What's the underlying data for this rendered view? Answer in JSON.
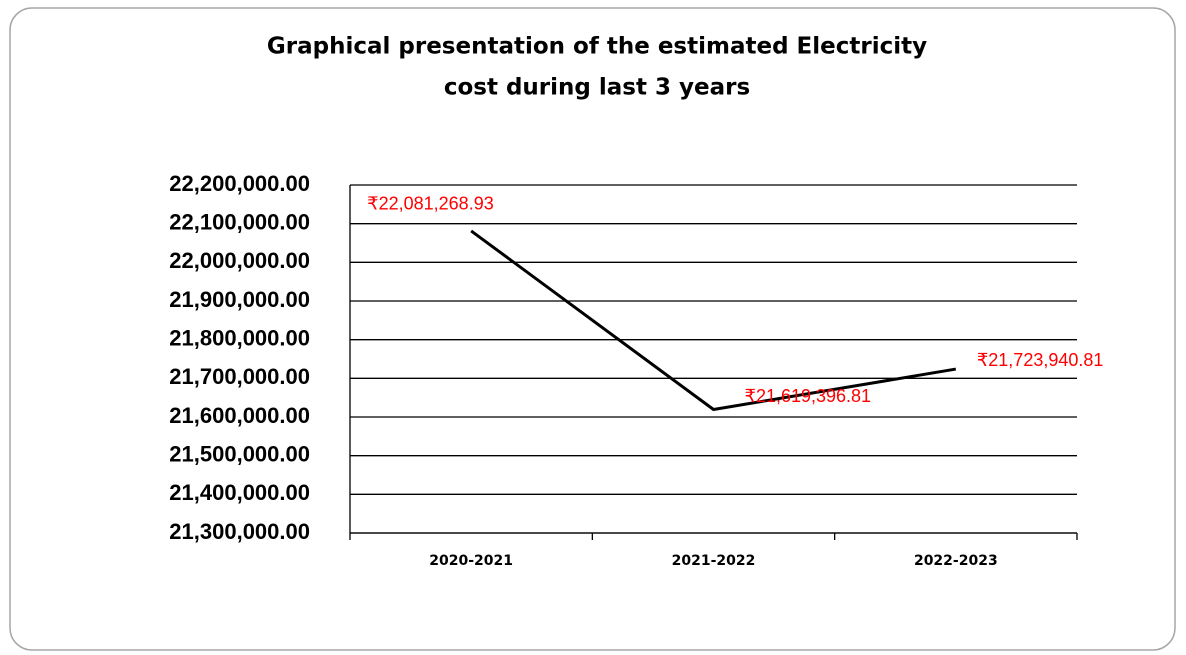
{
  "chart_data": {
    "type": "line",
    "title": "Graphical presentation of the estimated Electricity cost during last 3 years",
    "categories": [
      "2020-2021",
      "2021-2022",
      "2022-2023"
    ],
    "series": [
      {
        "name": "Electricity cost",
        "color": "#000000",
        "values": [
          22081268.93,
          21619396.81,
          21723940.81
        ],
        "value_labels": [
          "₹22,081,268.93",
          "₹21,619,396.81",
          "₹21,723,940.81"
        ]
      }
    ],
    "ylim": [
      21300000,
      22200000
    ],
    "yticks": [
      {
        "value": 21300000,
        "label": "21,300,000.00"
      },
      {
        "value": 21400000,
        "label": "21,400,000.00"
      },
      {
        "value": 21500000,
        "label": "21,500,000.00"
      },
      {
        "value": 21600000,
        "label": "21,600,000.00"
      },
      {
        "value": 21700000,
        "label": "21,700,000.00"
      },
      {
        "value": 21800000,
        "label": "21,800,000.00"
      },
      {
        "value": 21900000,
        "label": "21,900,000.00"
      },
      {
        "value": 22000000,
        "label": "22,000,000.00"
      },
      {
        "value": 22100000,
        "label": "22,100,000.00"
      },
      {
        "value": 22200000,
        "label": "22,200,000.00"
      }
    ],
    "grid": true,
    "label_color": "#ff0000"
  }
}
